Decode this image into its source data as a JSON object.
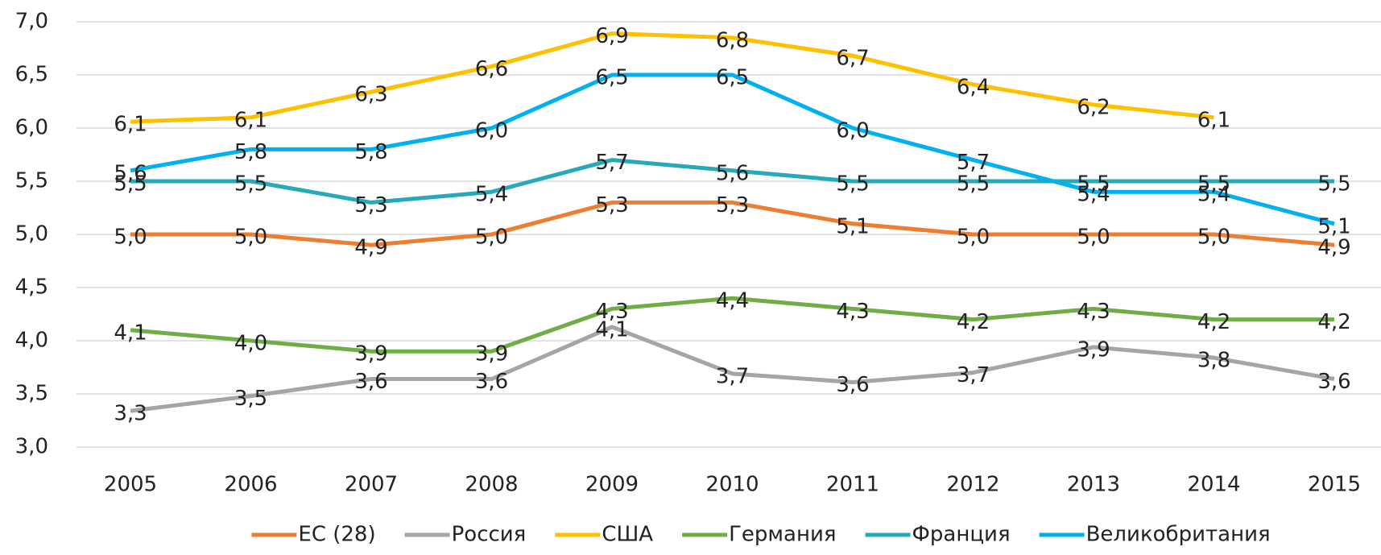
{
  "chart_data": {
    "type": "line",
    "categories": [
      "2005",
      "2006",
      "2007",
      "2008",
      "2009",
      "2010",
      "2011",
      "2012",
      "2013",
      "2014",
      "2015"
    ],
    "ylim": [
      3,
      7
    ],
    "yticks": [
      {
        "value": 3,
        "label": "3,0"
      },
      {
        "value": 3.5,
        "label": "3,5"
      },
      {
        "value": 4,
        "label": "4,0"
      },
      {
        "value": 4.5,
        "label": "4,5"
      },
      {
        "value": 5,
        "label": "5,0"
      },
      {
        "value": 5.5,
        "label": "5,5"
      },
      {
        "value": 6,
        "label": "6,0"
      },
      {
        "value": 6.5,
        "label": "6,5"
      },
      {
        "value": 7,
        "label": "7,0"
      }
    ],
    "grid": true,
    "legend": "bottom",
    "series": [
      {
        "name": "ЕС (28)",
        "color": "#ed7d31",
        "values": [
          5.0,
          5.0,
          4.9,
          5.0,
          5.3,
          5.3,
          5.1,
          5.0,
          5.0,
          5.0,
          4.9
        ],
        "value_labels": [
          "5,0",
          "5,0",
          "4,9",
          "5,0",
          "5,3",
          "5,3",
          "5,1",
          "5,0",
          "5,0",
          "5,0",
          "4,9"
        ]
      },
      {
        "name": "Россия",
        "color": "#a5a5a5",
        "values": [
          3.34,
          3.48,
          3.64,
          3.64,
          4.13,
          3.69,
          3.61,
          3.7,
          3.94,
          3.84,
          3.64
        ],
        "value_labels": [
          "3,3",
          "3,5",
          "3,6",
          "3,6",
          "4,1",
          "3,7",
          "3,6",
          "3,7",
          "3,9",
          "3,8",
          "3,6"
        ]
      },
      {
        "name": "США",
        "color": "#ffc000",
        "values": [
          6.06,
          6.1,
          6.34,
          6.58,
          6.89,
          6.85,
          6.68,
          6.41,
          6.22,
          6.1,
          null
        ],
        "value_labels": [
          "6,1",
          "6,1",
          "6,3",
          "6,6",
          "6,9",
          "6,8",
          "6,7",
          "6,4",
          "6,2",
          "6,1",
          null
        ]
      },
      {
        "name": "Германия",
        "color": "#70ad47",
        "values": [
          4.1,
          4.0,
          3.9,
          3.9,
          4.3,
          4.4,
          4.3,
          4.2,
          4.3,
          4.2,
          4.2
        ],
        "value_labels": [
          "4,1",
          "4,0",
          "3,9",
          "3,9",
          "4,3",
          "4,4",
          "4,3",
          "4,2",
          "4,3",
          "4,2",
          "4,2"
        ]
      },
      {
        "name": "Франция",
        "color": "#26a9b8",
        "values": [
          5.5,
          5.5,
          5.3,
          5.4,
          5.7,
          5.6,
          5.5,
          5.5,
          5.5,
          5.5,
          5.5
        ],
        "value_labels": [
          "5,5",
          "5,5",
          "5,3",
          "5,4",
          "5,7",
          "5,6",
          "5,5",
          "5,5",
          "5,5",
          "5,5",
          "5,5"
        ]
      },
      {
        "name": "Великобритания",
        "color": "#00b0f0",
        "values": [
          5.6,
          5.8,
          5.8,
          6.0,
          6.5,
          6.5,
          6.0,
          5.7,
          5.4,
          5.4,
          5.1
        ],
        "value_labels": [
          "5,6",
          "5,8",
          "5,8",
          "6,0",
          "6,5",
          "6,5",
          "6,0",
          "5,7",
          "5,4",
          "5,4",
          "5,1"
        ]
      }
    ]
  }
}
